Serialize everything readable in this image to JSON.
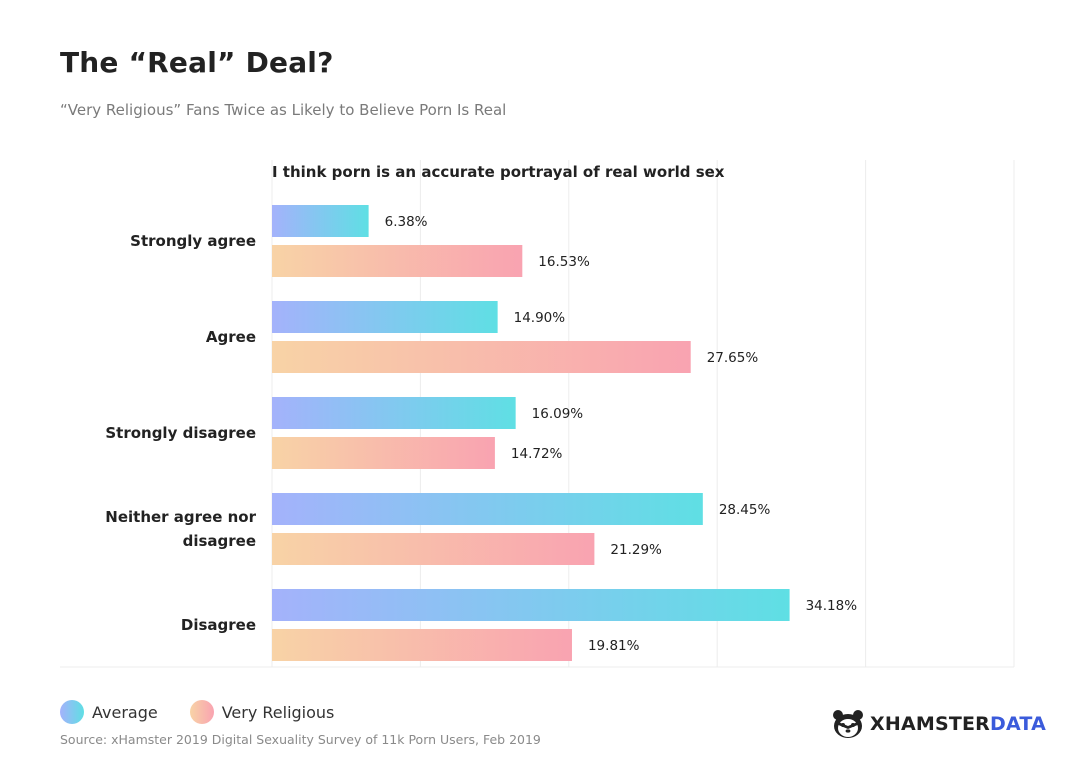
{
  "header": {
    "title": "The “Real” Deal?",
    "subtitle": "“Very Religious” Fans Twice as Likely to Believe Porn Is Real"
  },
  "chart_data": {
    "type": "bar",
    "orientation": "horizontal",
    "title": "I think porn is an accurate portrayal of real world sex",
    "categories": [
      [
        "Strongly agree"
      ],
      [
        "Agree"
      ],
      [
        "Strongly disagree"
      ],
      [
        "Neither agree nor",
        "disagree"
      ],
      [
        "Disagree"
      ]
    ],
    "series": [
      {
        "name": "Average",
        "values": [
          6.38,
          14.9,
          16.09,
          28.45,
          34.18
        ],
        "labels": [
          "6.38%",
          "14.90%",
          "16.09%",
          "28.45%",
          "34.18%"
        ],
        "colors": [
          "#a4b2fb",
          "#5fdfe4"
        ]
      },
      {
        "name": "Very Religious",
        "values": [
          16.53,
          27.65,
          14.72,
          21.29,
          19.81
        ],
        "labels": [
          "16.53%",
          "27.65%",
          "14.72%",
          "21.29%",
          "19.81%"
        ],
        "colors": [
          "#f8d3a6",
          "#f9a3b1"
        ]
      }
    ],
    "xlim": [
      0,
      49
    ],
    "gridlines": [
      0,
      9.8,
      19.6,
      29.4,
      39.2,
      49
    ],
    "grid": true,
    "legend": "bottom-left"
  },
  "legend": {
    "items": [
      "Average",
      "Very Religious"
    ]
  },
  "footer": {
    "source": "Source: xHamster 2019 Digital Sexuality Survey of 11k Porn Users, Feb 2019",
    "brand_a": "XHAMSTER",
    "brand_b": "DATA"
  }
}
